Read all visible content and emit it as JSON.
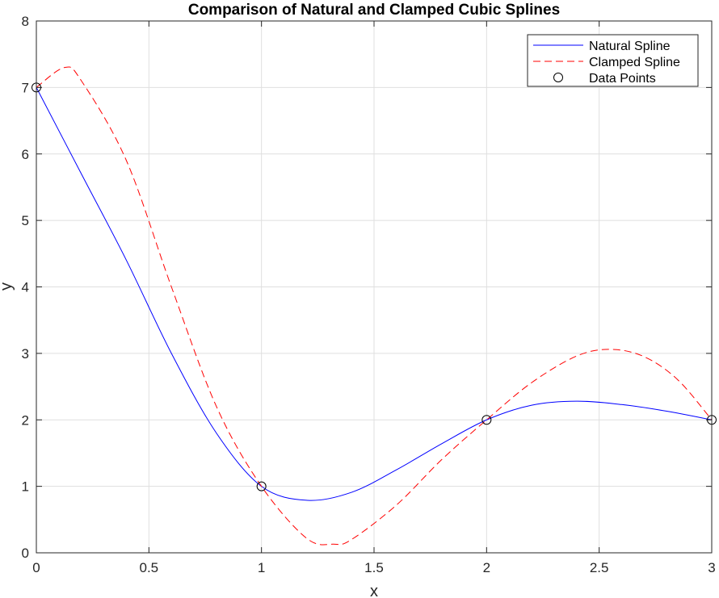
{
  "chart_data": {
    "type": "line",
    "title": "Comparison of Natural and Clamped Cubic Splines",
    "xlabel": "x",
    "ylabel": "y",
    "xlim": [
      0,
      3
    ],
    "ylim": [
      0,
      8
    ],
    "xticks": [
      0,
      0.5,
      1,
      1.5,
      2,
      2.5,
      3
    ],
    "xtick_labels": [
      "0",
      "0.5",
      "1",
      "1.5",
      "2",
      "2.5",
      "3"
    ],
    "yticks": [
      0,
      1,
      2,
      3,
      4,
      5,
      6,
      7,
      8
    ],
    "ytick_labels": [
      "0",
      "1",
      "2",
      "3",
      "4",
      "5",
      "6",
      "7",
      "8"
    ],
    "grid": true,
    "legend_position": "top-right",
    "data_points": {
      "name": "Data Points",
      "x": [
        0,
        1,
        2,
        3
      ],
      "y": [
        7,
        1,
        2,
        2
      ]
    },
    "series": [
      {
        "name": "Natural Spline",
        "style": "solid",
        "color": "#0000ff",
        "x": [
          0,
          0.2,
          0.4,
          0.6,
          0.8,
          1.0,
          1.2,
          1.4,
          1.6,
          1.8,
          2.0,
          2.2,
          2.4,
          2.6,
          2.8,
          3.0
        ],
        "y": [
          7.0,
          5.7,
          4.4,
          3.0,
          1.8,
          1.0,
          0.79,
          0.91,
          1.25,
          1.64,
          2.0,
          2.22,
          2.28,
          2.23,
          2.13,
          2.0
        ]
      },
      {
        "name": "Clamped Spline",
        "style": "dashed",
        "color": "#ff0000",
        "x": [
          0,
          0.125,
          0.2,
          0.4,
          0.6,
          0.8,
          1.0,
          1.2,
          1.32,
          1.4,
          1.6,
          1.8,
          2.0,
          2.2,
          2.4,
          2.55,
          2.7,
          2.85,
          3.0
        ],
        "y": [
          7.0,
          7.3,
          7.1,
          5.9,
          4.0,
          2.2,
          1.0,
          0.22,
          0.13,
          0.2,
          0.72,
          1.4,
          2.0,
          2.56,
          2.96,
          3.06,
          2.95,
          2.6,
          2.0
        ]
      }
    ]
  },
  "legend": {
    "natural_label": "Natural Spline",
    "clamped_label": "Clamped Spline",
    "points_label": "Data Points"
  }
}
